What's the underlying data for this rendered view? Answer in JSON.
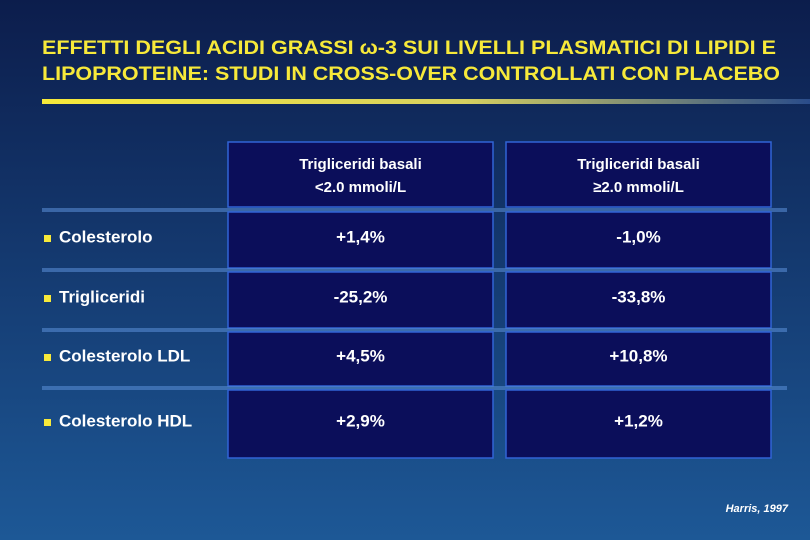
{
  "header": {
    "title": [
      "EFFETTI DEGLI ACIDI GRASSI ω-3 SUI LIVELLI PLASMATICI DI LIPIDI E",
      "LIPOPROTEINE: STUDI IN CROSS-OVER CONTROLLATI CON PLACEBO"
    ]
  },
  "table": {
    "columns": [
      [
        "Trigliceridi basali",
        "<2.0 mmoli/L"
      ],
      [
        "Trigliceridi basali",
        "≥2.0 mmoli/L"
      ]
    ],
    "rows": [
      [
        "Colesterolo",
        "+1,4%",
        "-1,0%"
      ],
      [
        "Trigliceridi",
        "-25,2%",
        "-33,8%"
      ],
      [
        "Colesterolo LDL",
        "+4,5%",
        "+10,8%"
      ],
      [
        "Colesterolo HDL",
        "+2,9%",
        "+1,2%"
      ]
    ]
  },
  "source": "Harris, 1997"
}
